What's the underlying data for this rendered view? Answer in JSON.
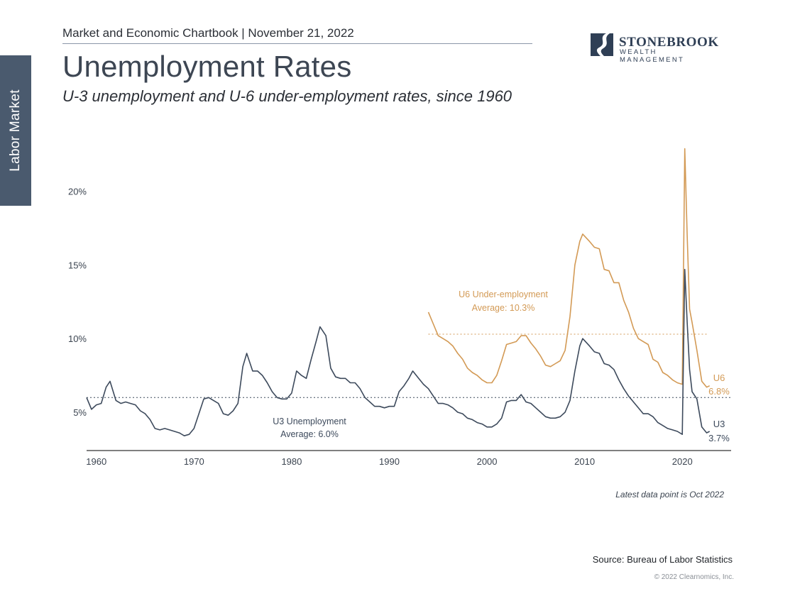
{
  "side_tab": "Labor Market",
  "header": "Market and Economic Chartbook | November 21, 2022",
  "title": "Unemployment Rates",
  "subtitle": "U-3 unemployment and U-6 under-employment rates, since 1960",
  "logo": {
    "name": "STONEBROOK",
    "tagline": "WEALTH MANAGEMENT",
    "icon": "river-road-logo-icon"
  },
  "colors": {
    "u3": "#3d4a5c",
    "u6": "#d39a55",
    "axis": "#333333",
    "tab": "#4a5a6e"
  },
  "chart_data": {
    "type": "line",
    "xlim": [
      1959,
      2025
    ],
    "ylim": [
      2.4,
      23.5
    ],
    "x_ticks": [
      "1960",
      "1970",
      "1980",
      "1990",
      "2000",
      "2010",
      "2020"
    ],
    "y_ticks": [
      "5%",
      "10%",
      "15%",
      "20%"
    ],
    "grid": false,
    "series": [
      {
        "name": "U3",
        "label": "U3 Unemployment",
        "end_label": "3.7%",
        "average": 6.0,
        "average_label": "Average: 6.0%",
        "x": [
          1959.0,
          1959.5,
          1960.0,
          1960.5,
          1961.0,
          1961.4,
          1962.0,
          1962.5,
          1963.0,
          1963.5,
          1964.0,
          1964.5,
          1965.0,
          1965.5,
          1966.0,
          1966.5,
          1967.0,
          1967.5,
          1968.0,
          1968.5,
          1969.0,
          1969.5,
          1970.0,
          1970.5,
          1971.0,
          1971.5,
          1972.0,
          1972.5,
          1973.0,
          1973.5,
          1974.0,
          1974.5,
          1975.0,
          1975.4,
          1976.0,
          1976.5,
          1977.0,
          1977.5,
          1978.0,
          1978.5,
          1979.0,
          1979.5,
          1980.0,
          1980.5,
          1981.0,
          1981.5,
          1982.0,
          1982.5,
          1982.9,
          1983.5,
          1984.0,
          1984.5,
          1985.0,
          1985.5,
          1986.0,
          1986.5,
          1987.0,
          1987.5,
          1988.0,
          1988.5,
          1989.0,
          1989.5,
          1990.0,
          1990.5,
          1991.0,
          1991.5,
          1992.0,
          1992.4,
          1993.0,
          1993.5,
          1994.0,
          1994.5,
          1995.0,
          1995.5,
          1996.0,
          1996.5,
          1997.0,
          1997.5,
          1998.0,
          1998.5,
          1999.0,
          1999.5,
          2000.0,
          2000.5,
          2001.0,
          2001.5,
          2002.0,
          2002.5,
          2003.0,
          2003.5,
          2004.0,
          2004.5,
          2005.0,
          2005.5,
          2006.0,
          2006.5,
          2007.0,
          2007.5,
          2008.0,
          2008.5,
          2009.0,
          2009.5,
          2009.8,
          2010.5,
          2011.0,
          2011.5,
          2012.0,
          2012.5,
          2013.0,
          2013.5,
          2014.0,
          2014.5,
          2015.0,
          2015.5,
          2016.0,
          2016.5,
          2017.0,
          2017.5,
          2018.0,
          2018.5,
          2019.0,
          2019.5,
          2020.0,
          2020.25,
          2020.5,
          2020.75,
          2021.0,
          2021.5,
          2022.0,
          2022.5,
          2022.8
        ],
        "values": [
          6.0,
          5.2,
          5.5,
          5.6,
          6.7,
          7.1,
          5.8,
          5.6,
          5.7,
          5.6,
          5.5,
          5.1,
          4.9,
          4.5,
          3.9,
          3.8,
          3.9,
          3.8,
          3.7,
          3.6,
          3.4,
          3.5,
          3.9,
          4.9,
          5.9,
          6.0,
          5.8,
          5.6,
          4.9,
          4.8,
          5.1,
          5.6,
          8.1,
          9.0,
          7.8,
          7.8,
          7.5,
          7.0,
          6.4,
          6.0,
          5.9,
          5.9,
          6.3,
          7.8,
          7.5,
          7.3,
          8.6,
          9.8,
          10.8,
          10.2,
          8.0,
          7.4,
          7.3,
          7.3,
          7.0,
          7.0,
          6.6,
          6.0,
          5.7,
          5.4,
          5.4,
          5.3,
          5.4,
          5.4,
          6.4,
          6.8,
          7.3,
          7.8,
          7.3,
          6.9,
          6.6,
          6.1,
          5.6,
          5.6,
          5.5,
          5.3,
          5.0,
          4.9,
          4.6,
          4.5,
          4.3,
          4.2,
          4.0,
          4.0,
          4.2,
          4.6,
          5.7,
          5.8,
          5.8,
          6.2,
          5.7,
          5.6,
          5.3,
          5.0,
          4.7,
          4.6,
          4.6,
          4.7,
          5.0,
          5.8,
          7.8,
          9.5,
          10.0,
          9.5,
          9.1,
          9.0,
          8.3,
          8.2,
          7.9,
          7.2,
          6.6,
          6.1,
          5.7,
          5.3,
          4.9,
          4.9,
          4.7,
          4.3,
          4.1,
          3.9,
          3.8,
          3.7,
          3.5,
          14.7,
          11.1,
          7.9,
          6.4,
          5.9,
          4.0,
          3.6,
          3.7
        ]
      },
      {
        "name": "U6",
        "label": "U6 Under-employment",
        "end_label": "6.8%",
        "average": 10.3,
        "average_label": "Average: 10.3%",
        "x": [
          1994.0,
          1994.5,
          1995.0,
          1995.5,
          1996.0,
          1996.5,
          1997.0,
          1997.5,
          1998.0,
          1998.5,
          1999.0,
          1999.5,
          2000.0,
          2000.5,
          2001.0,
          2001.5,
          2002.0,
          2002.5,
          2003.0,
          2003.5,
          2004.0,
          2004.5,
          2005.0,
          2005.5,
          2006.0,
          2006.5,
          2007.0,
          2007.5,
          2008.0,
          2008.5,
          2009.0,
          2009.5,
          2009.8,
          2010.5,
          2011.0,
          2011.5,
          2012.0,
          2012.5,
          2013.0,
          2013.5,
          2014.0,
          2014.5,
          2015.0,
          2015.5,
          2016.0,
          2016.5,
          2017.0,
          2017.5,
          2018.0,
          2018.5,
          2019.0,
          2019.5,
          2020.0,
          2020.25,
          2020.5,
          2020.75,
          2021.0,
          2021.5,
          2022.0,
          2022.5,
          2022.8
        ],
        "values": [
          11.8,
          11.0,
          10.2,
          10.0,
          9.8,
          9.5,
          9.0,
          8.6,
          8.0,
          7.7,
          7.5,
          7.2,
          7.0,
          7.0,
          7.5,
          8.5,
          9.6,
          9.7,
          9.8,
          10.2,
          10.2,
          9.7,
          9.3,
          8.8,
          8.2,
          8.1,
          8.3,
          8.5,
          9.2,
          11.5,
          15.0,
          16.6,
          17.1,
          16.6,
          16.2,
          16.1,
          14.7,
          14.6,
          13.8,
          13.8,
          12.6,
          11.8,
          10.7,
          10.0,
          9.8,
          9.6,
          8.6,
          8.4,
          7.7,
          7.5,
          7.2,
          7.0,
          6.9,
          22.9,
          17.0,
          12.0,
          11.1,
          9.2,
          7.1,
          6.7,
          6.8
        ]
      }
    ]
  },
  "footnote": "Latest data point is Oct 2022",
  "source": "Source: Bureau of Labor Statistics",
  "copyright": "© 2022 Clearnomics, Inc."
}
